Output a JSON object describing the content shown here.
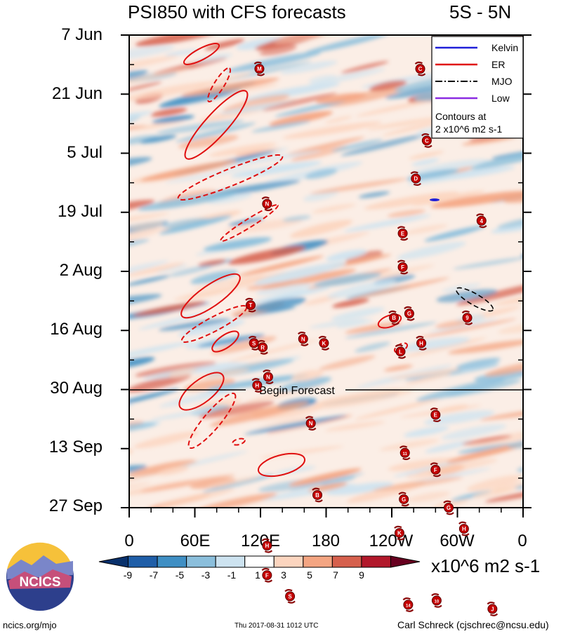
{
  "header": {
    "title": "PSI850 with CFS forecasts",
    "region": "5S - 5N"
  },
  "chart_data": {
    "type": "heatmap",
    "title": "PSI850 with CFS forecasts",
    "subtitle": "5S - 5N",
    "x_tick_labels": [
      "0",
      "60E",
      "120E",
      "180",
      "120W",
      "60W",
      "0"
    ],
    "y_tick_labels": [
      "7 Jun",
      "21 Jun",
      "5 Jul",
      "19 Jul",
      "2 Aug",
      "16 Aug",
      "30 Aug",
      "13 Sep",
      "27 Sep"
    ],
    "legend": {
      "entries": [
        {
          "label": "Kelvin",
          "color": "#1f1fd8"
        },
        {
          "label": "ER",
          "color": "#e01010"
        },
        {
          "label": "MJO",
          "color": "#000000"
        },
        {
          "label": "Low",
          "color": "#8a2be2"
        }
      ],
      "note_line1": "Contours at",
      "note_line2": "2 x10^6 m2 s-1",
      "placement": "top-right"
    },
    "forecast_label": "Begin Forecast",
    "forecast_start": "30 Aug",
    "colorbar": {
      "levels": [
        "-9",
        "-7",
        "-5",
        "-3",
        "-1",
        "1",
        "3",
        "5",
        "7",
        "9"
      ],
      "colors": [
        "#08306b",
        "#1f5ea8",
        "#3f8fc4",
        "#8bbfdc",
        "#cde3f0",
        "#ffffff",
        "#fcd5bf",
        "#f4a582",
        "#d6604d",
        "#b2182b",
        "#67001f"
      ],
      "units": "x10^6 m2 s-1"
    },
    "storms": [
      {
        "lon": 119,
        "day": 8,
        "label": "M"
      },
      {
        "lon": 266,
        "day": 8,
        "label": "C"
      },
      {
        "lon": 272,
        "day": 25,
        "label": "C"
      },
      {
        "lon": 262,
        "day": 34,
        "label": "D"
      },
      {
        "lon": 126,
        "day": 40,
        "label": "N"
      },
      {
        "lon": 322,
        "day": 44,
        "label": "4"
      },
      {
        "lon": 250,
        "day": 47,
        "label": "E"
      },
      {
        "lon": 250,
        "day": 55,
        "label": "F"
      },
      {
        "lon": 111,
        "day": 64,
        "label": "T"
      },
      {
        "lon": 242,
        "day": 67,
        "label": "B"
      },
      {
        "lon": 256,
        "day": 66,
        "label": "G"
      },
      {
        "lon": 309,
        "day": 67,
        "label": "9"
      },
      {
        "lon": 114,
        "day": 73,
        "label": "S"
      },
      {
        "lon": 122,
        "day": 74,
        "label": "R"
      },
      {
        "lon": 159,
        "day": 72,
        "label": "N"
      },
      {
        "lon": 178,
        "day": 73,
        "label": "K"
      },
      {
        "lon": 248,
        "day": 75,
        "label": "L"
      },
      {
        "lon": 267,
        "day": 73,
        "label": "H"
      },
      {
        "lon": 127,
        "day": 81,
        "label": "N"
      },
      {
        "lon": 117,
        "day": 83,
        "label": "H"
      },
      {
        "lon": 166,
        "day": 92,
        "label": "N"
      },
      {
        "lon": 280,
        "day": 90,
        "label": "E"
      },
      {
        "lon": 252,
        "day": 99,
        "label": "11"
      },
      {
        "lon": 280,
        "day": 103,
        "label": "F"
      },
      {
        "lon": 172,
        "day": 109,
        "label": "B"
      },
      {
        "lon": 251,
        "day": 110,
        "label": "G"
      },
      {
        "lon": 292,
        "day": 112,
        "label": "G"
      },
      {
        "lon": 306,
        "day": 117,
        "label": "H"
      },
      {
        "lon": 247,
        "day": 118,
        "label": "K"
      },
      {
        "lon": 126,
        "day": 121,
        "label": "H"
      },
      {
        "lon": 126,
        "day": 128,
        "label": "F"
      },
      {
        "lon": 147,
        "day": 133,
        "label": "S"
      },
      {
        "lon": 255,
        "day": 135,
        "label": "14"
      },
      {
        "lon": 281,
        "day": 134,
        "label": "10"
      },
      {
        "lon": 332,
        "day": 136,
        "label": "J"
      }
    ]
  },
  "footer": {
    "logo_text": "NCICS",
    "website": "ncics.org/mjo",
    "timestamp": "Thu 2017-08-31 1012 UTC",
    "author": "Carl Schreck (cjschrec@ncsu.edu)"
  }
}
